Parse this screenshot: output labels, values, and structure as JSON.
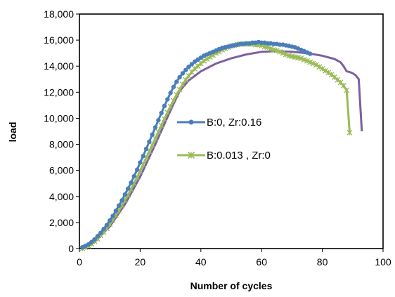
{
  "chart_data": {
    "type": "line",
    "title": "",
    "xlabel": "Number of cycles",
    "ylabel": "load",
    "xlim": [
      0,
      100
    ],
    "ylim": [
      0,
      18000
    ],
    "xticks": [
      0,
      20,
      40,
      60,
      80,
      100
    ],
    "yticks": [
      0,
      2000,
      4000,
      6000,
      8000,
      10000,
      12000,
      14000,
      16000,
      18000
    ],
    "xtick_labels": [
      "0",
      "20",
      "40",
      "60",
      "80",
      "100"
    ],
    "ytick_labels": [
      "0",
      "2,000",
      "4,000",
      "6,000",
      "8,000",
      "10,000",
      "12,000",
      "14,000",
      "16,000",
      "18,000"
    ],
    "grid": false,
    "legend_position": "center-right",
    "series": [
      {
        "name": "B:0, Zr:0.16",
        "color": "#4a7ebb",
        "marker": "circle",
        "points": [
          [
            1,
            100
          ],
          [
            2,
            200
          ],
          [
            3,
            320
          ],
          [
            4,
            500
          ],
          [
            5,
            700
          ],
          [
            6,
            950
          ],
          [
            7,
            1200
          ],
          [
            8,
            1500
          ],
          [
            9,
            1800
          ],
          [
            10,
            2150
          ],
          [
            11,
            2500
          ],
          [
            12,
            2900
          ],
          [
            13,
            3300
          ],
          [
            14,
            3700
          ],
          [
            15,
            4150
          ],
          [
            16,
            4600
          ],
          [
            17,
            5050
          ],
          [
            18,
            5550
          ],
          [
            19,
            6050
          ],
          [
            20,
            6600
          ],
          [
            21,
            7100
          ],
          [
            22,
            7650
          ],
          [
            23,
            8200
          ],
          [
            24,
            8750
          ],
          [
            25,
            9300
          ],
          [
            26,
            9850
          ],
          [
            27,
            10400
          ],
          [
            28,
            10950
          ],
          [
            29,
            11450
          ],
          [
            30,
            11950
          ],
          [
            31,
            12400
          ],
          [
            32,
            12800
          ],
          [
            33,
            13150
          ],
          [
            34,
            13450
          ],
          [
            35,
            13700
          ],
          [
            36,
            13950
          ],
          [
            37,
            14150
          ],
          [
            38,
            14350
          ],
          [
            39,
            14500
          ],
          [
            40,
            14650
          ],
          [
            41,
            14800
          ],
          [
            42,
            14900
          ],
          [
            43,
            15000
          ],
          [
            44,
            15100
          ],
          [
            45,
            15200
          ],
          [
            46,
            15300
          ],
          [
            47,
            15400
          ],
          [
            48,
            15450
          ],
          [
            49,
            15500
          ],
          [
            50,
            15550
          ],
          [
            51,
            15600
          ],
          [
            52,
            15650
          ],
          [
            53,
            15700
          ],
          [
            54,
            15700
          ],
          [
            55,
            15750
          ],
          [
            56,
            15750
          ],
          [
            57,
            15800
          ],
          [
            58,
            15800
          ],
          [
            59,
            15850
          ],
          [
            60,
            15800
          ],
          [
            61,
            15800
          ],
          [
            62,
            15750
          ],
          [
            63,
            15750
          ],
          [
            64,
            15700
          ],
          [
            65,
            15700
          ],
          [
            66,
            15650
          ],
          [
            67,
            15650
          ],
          [
            68,
            15600
          ],
          [
            69,
            15550
          ],
          [
            70,
            15500
          ],
          [
            71,
            15450
          ],
          [
            72,
            15350
          ],
          [
            73,
            15250
          ],
          [
            74,
            15150
          ],
          [
            75,
            15050
          ],
          [
            76,
            14950
          ]
        ]
      },
      {
        "name": "B:0.013 , Zr:0",
        "color": "#9bbb59",
        "marker": "star",
        "points": [
          [
            1,
            0
          ],
          [
            2,
            100
          ],
          [
            3,
            200
          ],
          [
            4,
            350
          ],
          [
            5,
            550
          ],
          [
            6,
            750
          ],
          [
            7,
            1000
          ],
          [
            8,
            1250
          ],
          [
            9,
            1550
          ],
          [
            10,
            1850
          ],
          [
            11,
            2200
          ],
          [
            12,
            2550
          ],
          [
            13,
            2900
          ],
          [
            14,
            3300
          ],
          [
            15,
            3700
          ],
          [
            16,
            4100
          ],
          [
            17,
            4550
          ],
          [
            18,
            5000
          ],
          [
            19,
            5450
          ],
          [
            20,
            5950
          ],
          [
            21,
            6450
          ],
          [
            22,
            6950
          ],
          [
            23,
            7450
          ],
          [
            24,
            7950
          ],
          [
            25,
            8450
          ],
          [
            26,
            8950
          ],
          [
            27,
            9450
          ],
          [
            28,
            9950
          ],
          [
            29,
            10450
          ],
          [
            30,
            10900
          ],
          [
            31,
            11350
          ],
          [
            32,
            11800
          ],
          [
            33,
            12200
          ],
          [
            34,
            12600
          ],
          [
            35,
            12950
          ],
          [
            36,
            13250
          ],
          [
            37,
            13550
          ],
          [
            38,
            13800
          ],
          [
            39,
            14000
          ],
          [
            40,
            14200
          ],
          [
            41,
            14400
          ],
          [
            42,
            14550
          ],
          [
            43,
            14700
          ],
          [
            44,
            14850
          ],
          [
            45,
            15000
          ],
          [
            46,
            15100
          ],
          [
            47,
            15250
          ],
          [
            48,
            15350
          ],
          [
            49,
            15450
          ],
          [
            50,
            15550
          ],
          [
            51,
            15600
          ],
          [
            52,
            15650
          ],
          [
            53,
            15700
          ],
          [
            54,
            15700
          ],
          [
            55,
            15700
          ],
          [
            56,
            15700
          ],
          [
            57,
            15700
          ],
          [
            58,
            15650
          ],
          [
            59,
            15650
          ],
          [
            60,
            15600
          ],
          [
            61,
            15500
          ],
          [
            62,
            15450
          ],
          [
            63,
            15350
          ],
          [
            64,
            15250
          ],
          [
            65,
            15200
          ],
          [
            66,
            15100
          ],
          [
            67,
            15000
          ],
          [
            68,
            14900
          ],
          [
            69,
            14800
          ],
          [
            70,
            14750
          ],
          [
            71,
            14700
          ],
          [
            72,
            14650
          ],
          [
            73,
            14600
          ],
          [
            74,
            14500
          ],
          [
            75,
            14400
          ],
          [
            76,
            14300
          ],
          [
            77,
            14200
          ],
          [
            78,
            14100
          ],
          [
            79,
            13950
          ],
          [
            80,
            13800
          ],
          [
            81,
            13650
          ],
          [
            82,
            13500
          ],
          [
            83,
            13350
          ],
          [
            84,
            13150
          ],
          [
            85,
            12950
          ],
          [
            86,
            12750
          ],
          [
            87,
            12500
          ],
          [
            88,
            12150
          ],
          [
            89,
            8900
          ]
        ]
      },
      {
        "name": "",
        "color": "#7d60a0",
        "marker": "none",
        "points": [
          [
            1,
            0
          ],
          [
            5,
            500
          ],
          [
            10,
            1700
          ],
          [
            15,
            3400
          ],
          [
            20,
            5500
          ],
          [
            25,
            8000
          ],
          [
            30,
            10600
          ],
          [
            33,
            12100
          ],
          [
            36,
            12900
          ],
          [
            40,
            13600
          ],
          [
            45,
            14200
          ],
          [
            50,
            14600
          ],
          [
            55,
            14900
          ],
          [
            60,
            15100
          ],
          [
            65,
            15150
          ],
          [
            70,
            15100
          ],
          [
            75,
            15000
          ],
          [
            80,
            14800
          ],
          [
            84,
            14550
          ],
          [
            86,
            14300
          ],
          [
            87,
            14000
          ],
          [
            88,
            13600
          ],
          [
            89,
            13550
          ],
          [
            90,
            13450
          ],
          [
            91,
            13300
          ],
          [
            92,
            13000
          ],
          [
            93,
            9000
          ]
        ]
      }
    ]
  }
}
